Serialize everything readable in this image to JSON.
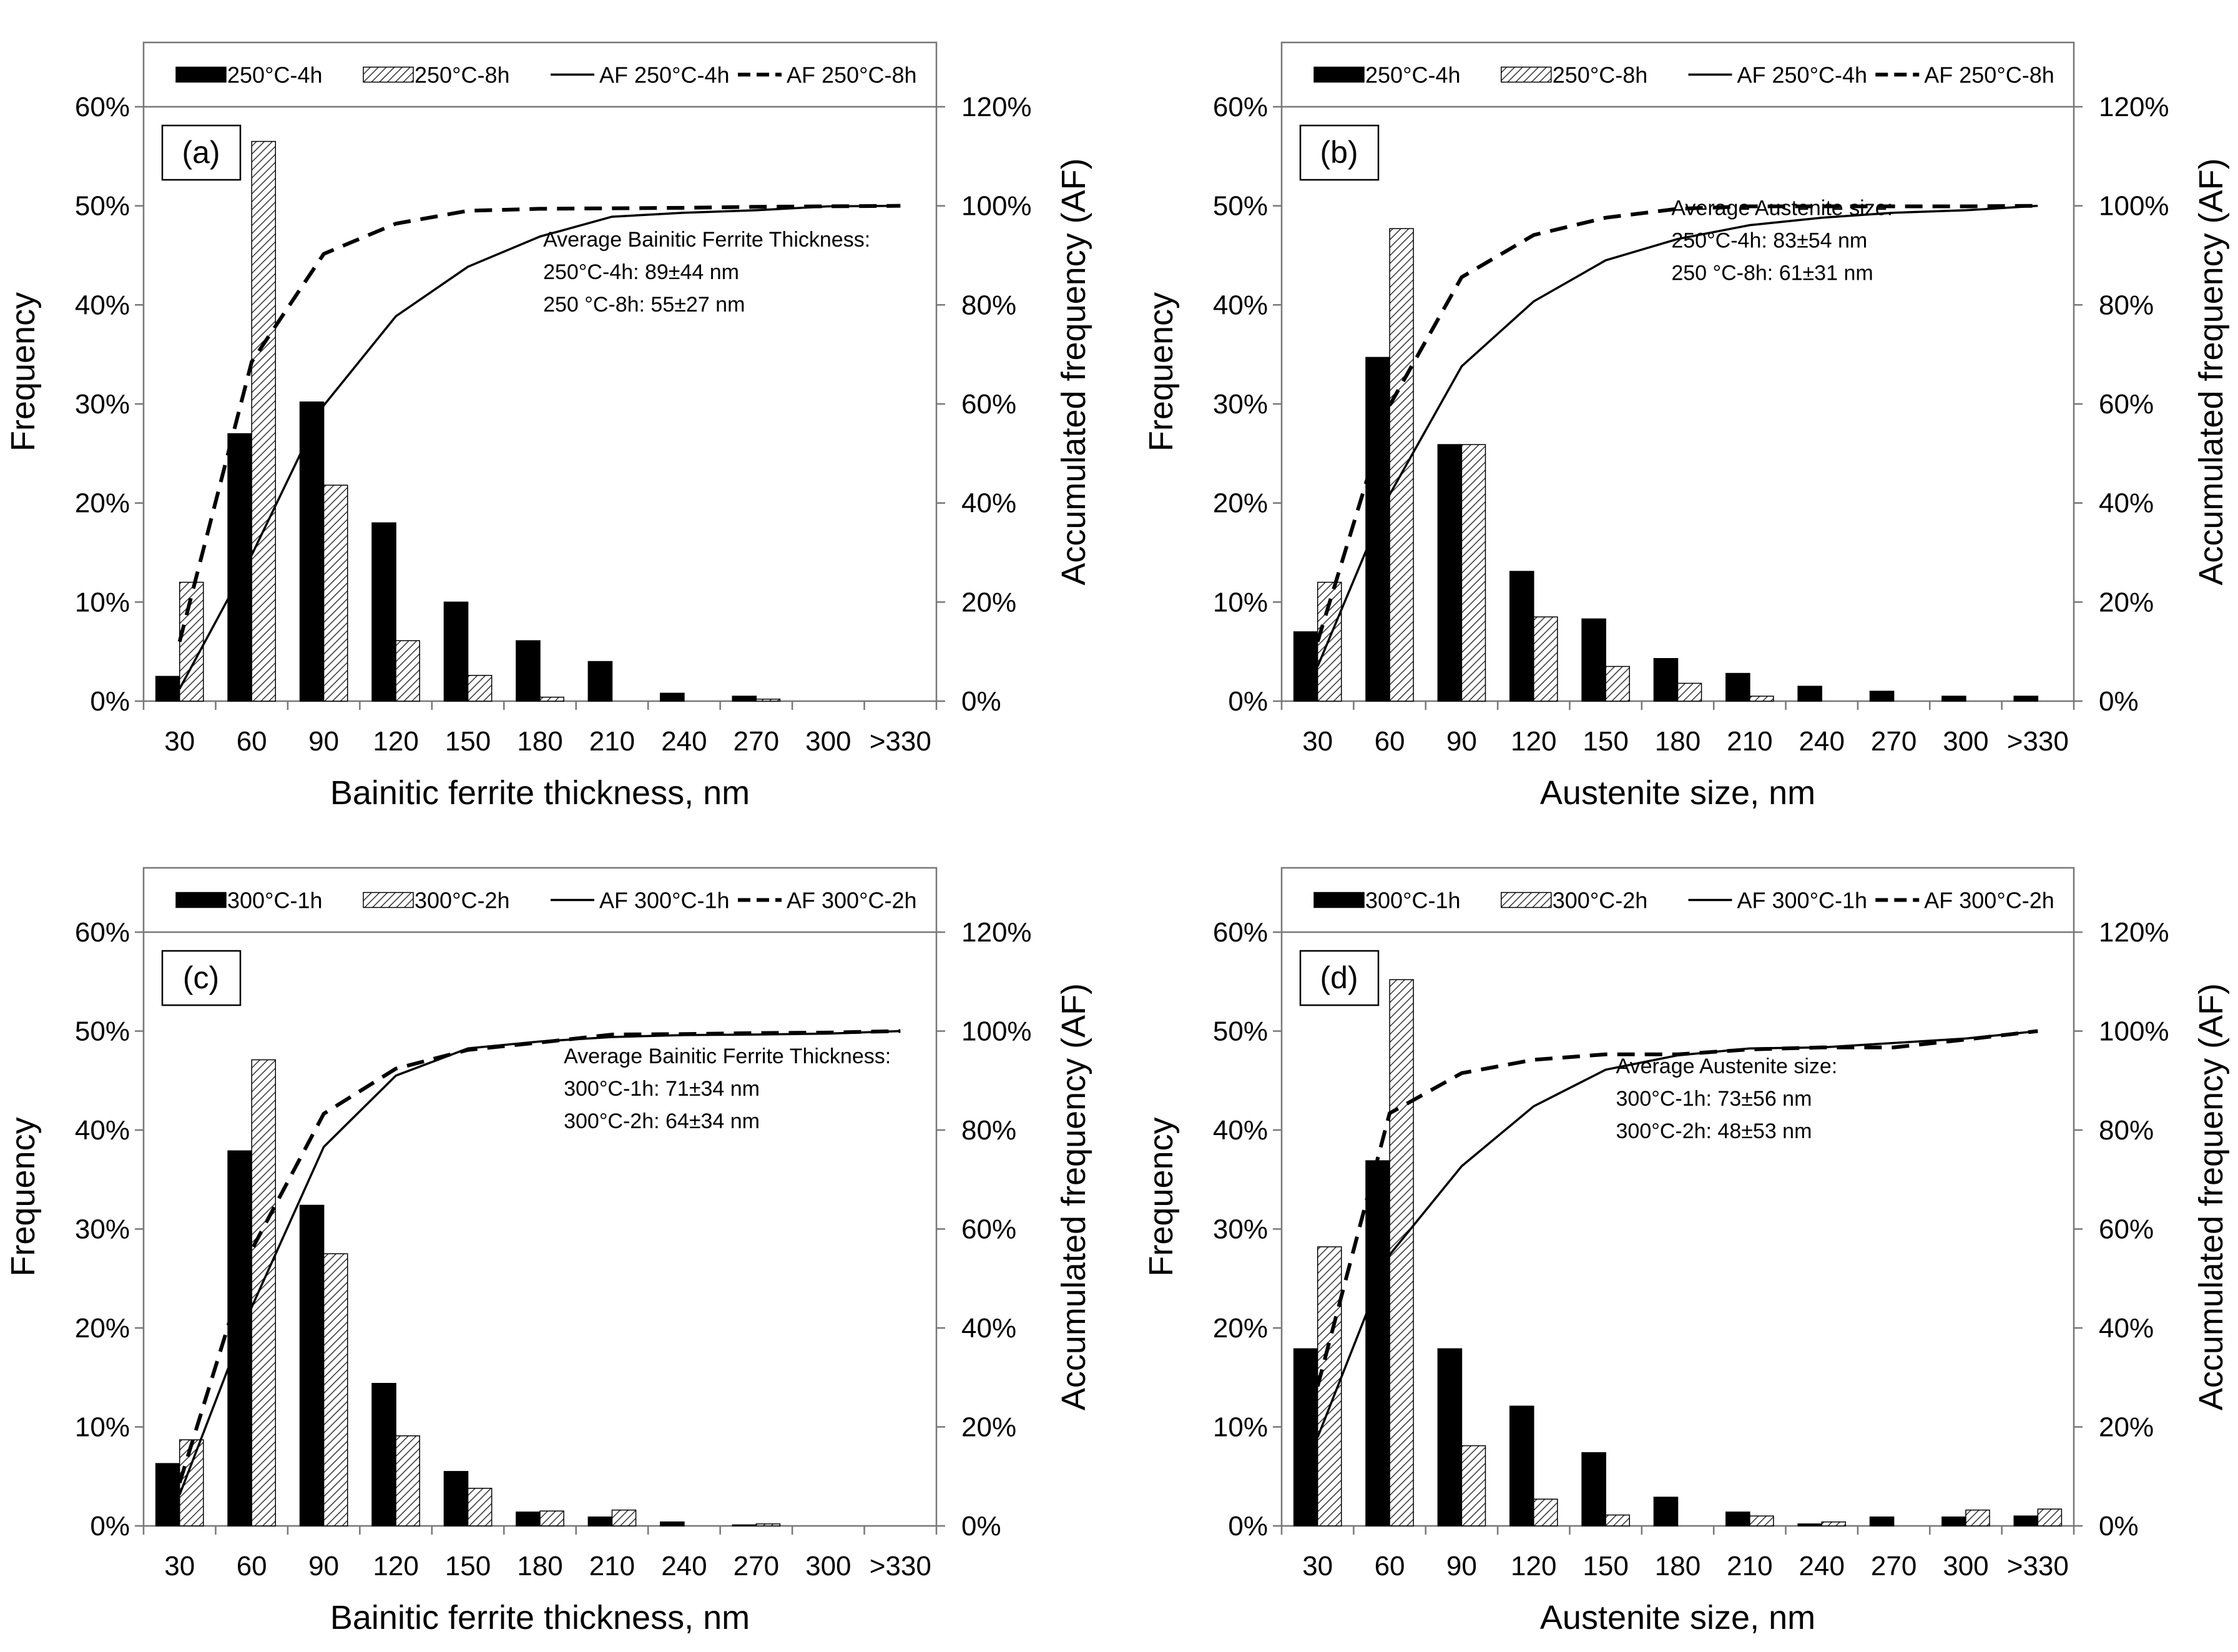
{
  "chart_data": [
    {
      "panel": "a",
      "type": "bar",
      "panel_label": "(a)",
      "categories": [
        "30",
        "60",
        "90",
        "120",
        "150",
        "180",
        "210",
        "240",
        "270",
        "300",
        ">330"
      ],
      "series": [
        {
          "name": "250°C-4h",
          "style": "solid",
          "values": [
            2.5,
            27,
            30.2,
            18,
            10,
            6.1,
            4,
            0.8,
            0.5,
            0,
            0
          ]
        },
        {
          "name": "250°C-8h",
          "style": "hatched",
          "values": [
            12,
            56.5,
            21.8,
            6.1,
            2.6,
            0.4,
            0,
            0,
            0.2,
            0,
            0
          ]
        }
      ],
      "af_series": [
        {
          "name": "AF 250°C-4h",
          "style": "solid",
          "values": [
            2.5,
            29.5,
            59.7,
            77.7,
            87.7,
            93.8,
            97.8,
            98.6,
            99.1,
            99.9,
            100
          ]
        },
        {
          "name": "AF 250°C-8h",
          "style": "dashed",
          "values": [
            12,
            68.5,
            90.3,
            96.4,
            99,
            99.4,
            99.5,
            99.6,
            99.8,
            99.9,
            100
          ]
        }
      ],
      "annotation": [
        "Average Bainitic Ferrite Thickness:",
        "250°C-4h: 89±44 nm",
        "250 °C-8h: 55±27 nm"
      ],
      "xlabel": "Bainitic ferrite thickness, nm",
      "ylabel": "Frequency",
      "y2label": "Accumulated frequency (AF)",
      "ylim": [
        0,
        60
      ],
      "y2lim": [
        0,
        120
      ],
      "yticks": [
        "0%",
        "10%",
        "20%",
        "30%",
        "40%",
        "50%",
        "60%"
      ],
      "y2ticks": [
        "0%",
        "20%",
        "40%",
        "60%",
        "80%",
        "100%",
        "120%"
      ]
    },
    {
      "panel": "b",
      "type": "bar",
      "panel_label": "(b)",
      "categories": [
        "30",
        "60",
        "90",
        "120",
        "150",
        "180",
        "210",
        "240",
        "270",
        "300",
        ">330"
      ],
      "series": [
        {
          "name": "250°C-4h",
          "style": "solid",
          "values": [
            7,
            34.7,
            25.9,
            13.1,
            8.3,
            4.3,
            2.8,
            1.5,
            1,
            0.5,
            0.5
          ]
        },
        {
          "name": "250°C-8h",
          "style": "hatched",
          "values": [
            12,
            47.7,
            25.9,
            8.5,
            3.5,
            1.8,
            0.5,
            0,
            0,
            0,
            0
          ]
        }
      ],
      "af_series": [
        {
          "name": "AF 250°C-4h",
          "style": "solid",
          "values": [
            7,
            41.7,
            67.6,
            80.7,
            89,
            93.3,
            96.1,
            97.6,
            98.6,
            99.1,
            100
          ]
        },
        {
          "name": "AF 250°C-8h",
          "style": "dashed",
          "values": [
            12,
            59.7,
            85.6,
            94.1,
            97.6,
            99.4,
            99.9,
            99.9,
            99.9,
            99.9,
            100
          ]
        }
      ],
      "annotation": [
        "Average Austenite size:",
        "250°C-4h: 83±54 nm",
        "250 °C-8h: 61±31 nm"
      ],
      "xlabel": "Austenite size, nm",
      "ylabel": "Frequency",
      "y2label": "Accumulated frequency (AF)",
      "ylim": [
        0,
        60
      ],
      "y2lim": [
        0,
        120
      ],
      "yticks": [
        "0%",
        "10%",
        "20%",
        "30%",
        "40%",
        "50%",
        "60%"
      ],
      "y2ticks": [
        "0%",
        "20%",
        "40%",
        "60%",
        "80%",
        "100%",
        "120%"
      ]
    },
    {
      "panel": "c",
      "type": "bar",
      "panel_label": "(c)",
      "categories": [
        "30",
        "60",
        "90",
        "120",
        "150",
        "180",
        "210",
        "240",
        "270",
        "300",
        ">330"
      ],
      "series": [
        {
          "name": "300°C-1h",
          "style": "solid",
          "values": [
            6.3,
            37.9,
            32.4,
            14.4,
            5.5,
            1.4,
            0.9,
            0.4,
            0.1,
            0,
            0
          ]
        },
        {
          "name": "300°C-2h",
          "style": "hatched",
          "values": [
            8.7,
            47.1,
            27.5,
            9.1,
            3.8,
            1.5,
            1.6,
            0,
            0.2,
            0,
            0
          ]
        }
      ],
      "af_series": [
        {
          "name": "AF 300°C-1h",
          "style": "solid",
          "values": [
            6.3,
            44.2,
            76.6,
            91,
            96.5,
            97.9,
            98.8,
            99.2,
            99.3,
            99.5,
            100
          ]
        },
        {
          "name": "AF 300°C-2h",
          "style": "dashed",
          "values": [
            8.7,
            55.8,
            83.3,
            92.4,
            96.2,
            97.7,
            99.3,
            99.4,
            99.6,
            99.7,
            100
          ]
        }
      ],
      "annotation": [
        "Average Bainitic Ferrite Thickness:",
        "300°C-1h: 71±34 nm",
        "300°C-2h: 64±34 nm"
      ],
      "xlabel": "Bainitic ferrite thickness, nm",
      "ylabel": "Frequency",
      "y2label": "Accumulated frequency (AF)",
      "ylim": [
        0,
        60
      ],
      "y2lim": [
        0,
        120
      ],
      "yticks": [
        "0%",
        "10%",
        "20%",
        "30%",
        "40%",
        "50%",
        "60%"
      ],
      "y2ticks": [
        "0%",
        "20%",
        "40%",
        "60%",
        "80%",
        "100%",
        "120%"
      ]
    },
    {
      "panel": "d",
      "type": "bar",
      "panel_label": "(d)",
      "categories": [
        "30",
        "60",
        "90",
        "120",
        "150",
        "180",
        "210",
        "240",
        "270",
        "300",
        ">330"
      ],
      "series": [
        {
          "name": "300°C-1h",
          "style": "solid",
          "values": [
            17.9,
            36.9,
            17.9,
            12.1,
            7.4,
            2.9,
            1.4,
            0.2,
            0.9,
            0.9,
            1
          ]
        },
        {
          "name": "300°C-2h",
          "style": "hatched",
          "values": [
            28.2,
            55.2,
            8.1,
            2.7,
            1.1,
            0,
            1,
            0.4,
            0,
            1.6,
            1.7
          ]
        }
      ],
      "af_series": [
        {
          "name": "AF 300°C-1h",
          "style": "solid",
          "values": [
            17.9,
            54.8,
            72.7,
            84.8,
            92.2,
            95.1,
            96.5,
            96.7,
            97.6,
            98.5,
            100
          ]
        },
        {
          "name": "AF 300°C-2h",
          "style": "dashed",
          "values": [
            28.2,
            83.4,
            91.5,
            94.2,
            95.3,
            95.3,
            96.3,
            96.7,
            96.7,
            98.3,
            100
          ]
        }
      ],
      "annotation": [
        "Average Austenite size:",
        "300°C-1h: 73±56 nm",
        "300°C-2h: 48±53 nm"
      ],
      "xlabel": "Austenite size, nm",
      "ylabel": "Frequency",
      "y2label": "Accumulated frequency (AF)",
      "ylim": [
        0,
        60
      ],
      "y2lim": [
        0,
        120
      ],
      "yticks": [
        "0%",
        "10%",
        "20%",
        "30%",
        "40%",
        "50%",
        "60%"
      ],
      "y2ticks": [
        "0%",
        "20%",
        "40%",
        "60%",
        "80%",
        "100%",
        "120%"
      ]
    }
  ]
}
